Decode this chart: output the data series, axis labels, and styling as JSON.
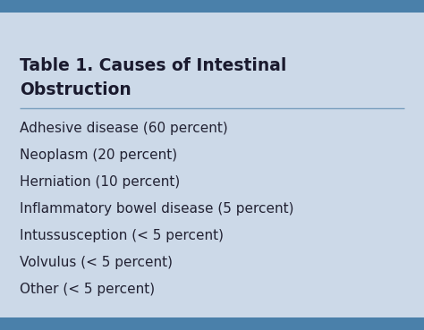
{
  "title_line1": "Table 1. Causes of Intestinal",
  "title_line2": "Obstruction",
  "items": [
    "Adhesive disease (60 percent)",
    "Neoplasm (20 percent)",
    "Herniation (10 percent)",
    "Inflammatory bowel disease (5 percent)",
    "Intussusception (< 5 percent)",
    "Volvulus (< 5 percent)",
    "Other (< 5 percent)"
  ],
  "background_color": "#ccd9e8",
  "top_border_color": "#4a80aa",
  "bottom_border_color": "#4a80aa",
  "title_color": "#1a1a2e",
  "text_color": "#222233",
  "divider_color": "#7a9fbe",
  "title_fontsize": 13.5,
  "item_fontsize": 11.0,
  "fig_width": 4.74,
  "fig_height": 3.69,
  "dpi": 100
}
